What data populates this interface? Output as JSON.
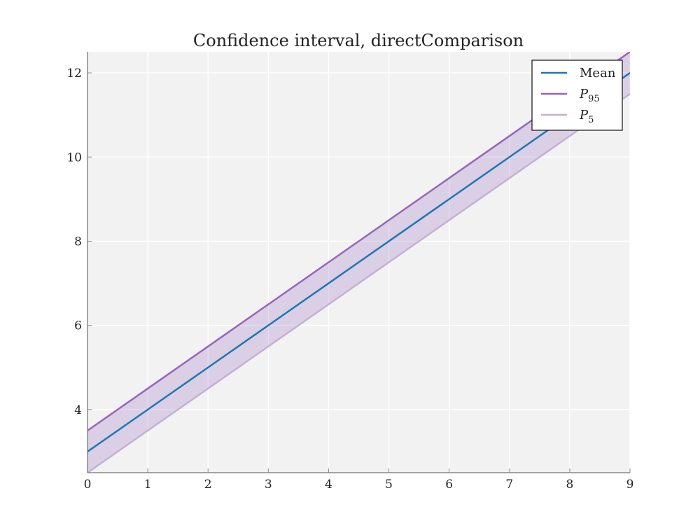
{
  "chart_data": {
    "type": "line",
    "title": "Confidence interval, directComparison",
    "xlabel": "",
    "ylabel": "",
    "xlim": [
      0,
      9
    ],
    "ylim": [
      2.5,
      12.5
    ],
    "x_ticks": [
      0,
      1,
      2,
      3,
      4,
      5,
      6,
      7,
      8,
      9
    ],
    "y_ticks": [
      4,
      6,
      8,
      10,
      12
    ],
    "grid": true,
    "legend_position": "top-right",
    "x": [
      0,
      1,
      2,
      3,
      4,
      5,
      6,
      7,
      8,
      9
    ],
    "series": [
      {
        "name": "Mean",
        "color": "#1f77b4",
        "values": [
          3,
          4,
          5,
          6,
          7,
          8,
          9,
          10,
          11,
          12
        ]
      },
      {
        "name": "P",
        "subscript": "95",
        "color": "#9467bd",
        "values": [
          3.5,
          4.5,
          5.5,
          6.5,
          7.5,
          8.5,
          9.5,
          10.5,
          11.5,
          12.5
        ]
      },
      {
        "name": "P",
        "subscript": "5",
        "color": "#c5b0d5",
        "values": [
          2.5,
          3.5,
          4.5,
          5.5,
          6.5,
          7.5,
          8.5,
          9.5,
          10.5,
          11.5
        ]
      }
    ],
    "band": {
      "upper_series": 1,
      "lower_series": 2,
      "color": "#9467bd",
      "opacity": 0.25
    },
    "colors": {
      "plot_background": "#f2f2f2",
      "grid": "#ffffff",
      "axis": "#888888"
    }
  }
}
